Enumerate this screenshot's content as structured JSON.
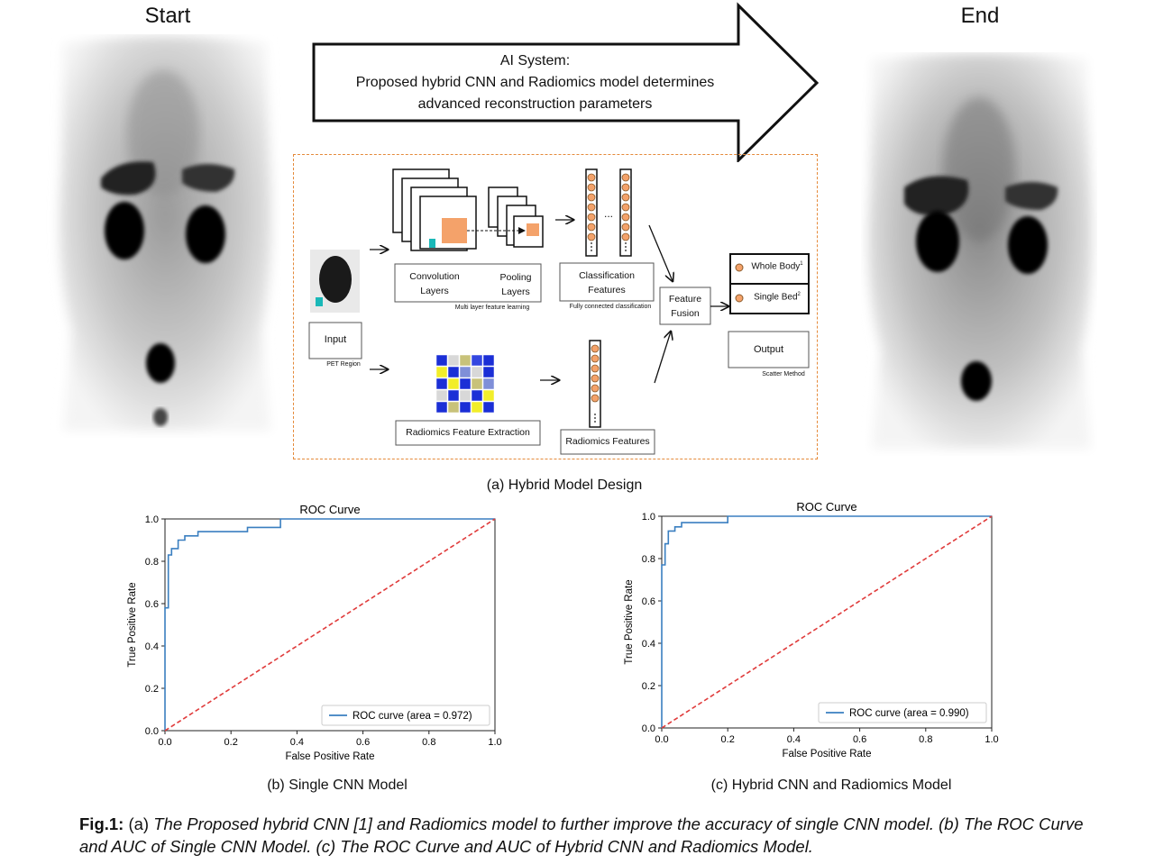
{
  "start_label": "Start",
  "end_label": "End",
  "ai_system": {
    "line1": "AI System:",
    "line2": "Proposed  hybrid  CNN and Radiomics model determines",
    "line3": "advanced reconstruction  parameters"
  },
  "diagram": {
    "input_label": "Input",
    "pet_region": "PET Region",
    "conv_label1": "Convolution",
    "conv_label2": "Layers",
    "pool_label1": "Pooling",
    "pool_label2": "Layers",
    "multi_layer": "Multi layer feature learning",
    "class_label1": "Classification",
    "class_label2": "Features",
    "fully_connected": "Fully connected classification",
    "dots": "...",
    "fusion_label1": "Feature",
    "fusion_label2": "Fusion",
    "whole_body": "Whole Body",
    "single_bed": "Single Bed",
    "sup1": "1",
    "sup2": "2",
    "output_label": "Output",
    "scatter_method": "Scatter Method",
    "radiomics_extraction": "Radiomics Feature Extraction",
    "radiomics_features": "Radiomics Features",
    "grid_colors": [
      [
        "#1b2fd6",
        "#d8d8d8",
        "#c8c27a",
        "#3447e0",
        "#1b2fd6"
      ],
      [
        "#f2ee2a",
        "#1b2fd6",
        "#7f8fd8",
        "#d8d8d8",
        "#1b2fd6"
      ],
      [
        "#1b2fd6",
        "#f2ee2a",
        "#1b2fd6",
        "#c8c27a",
        "#7f8fd8"
      ],
      [
        "#d8d8d8",
        "#1b2fd6",
        "#d8d8d8",
        "#1b2fd6",
        "#f2ee2a"
      ],
      [
        "#1b2fd6",
        "#c8c27a",
        "#1b2fd6",
        "#f2ee2a",
        "#1b2fd6"
      ]
    ]
  },
  "caption_a": "(a) Hybrid Model Design",
  "caption_b": "(b) Single CNN Model",
  "caption_c": "(c) Hybrid CNN and Radiomics Model",
  "fig_caption": {
    "prefix": "Fig.1:",
    "a_tag": " (a) ",
    "a_text": "The Proposed hybrid CNN [1] and Radiomics model to further improve the accuracy of single CNN model. (b) The ROC Curve and AUC of Single CNN Model. (c) The ROC Curve and AUC of Hybrid CNN and Radiomics Model."
  },
  "chart_data": [
    {
      "type": "line",
      "title": "ROC Curve",
      "xlabel": "False Positive Rate",
      "ylabel": "True Positive Rate",
      "xlim": [
        0,
        1
      ],
      "ylim": [
        0,
        1
      ],
      "xticks": [
        "0.0",
        "0.2",
        "0.4",
        "0.6",
        "0.8",
        "1.0"
      ],
      "yticks": [
        "0.0",
        "0.2",
        "0.4",
        "0.6",
        "0.8",
        "1.0"
      ],
      "legend": "bottom-right",
      "series": [
        {
          "name": "ROC curve (area = 0.972)",
          "color": "#3a7fc0",
          "x": [
            0,
            0,
            0.01,
            0.01,
            0.02,
            0.02,
            0.04,
            0.04,
            0.06,
            0.06,
            0.1,
            0.1,
            0.25,
            0.25,
            0.35,
            0.35,
            1.0
          ],
          "y": [
            0,
            0.58,
            0.58,
            0.83,
            0.83,
            0.86,
            0.86,
            0.9,
            0.9,
            0.92,
            0.92,
            0.94,
            0.94,
            0.96,
            0.96,
            1.0,
            1.0
          ]
        },
        {
          "name": "",
          "color": "#e03b3b",
          "dashed": true,
          "x": [
            0,
            1
          ],
          "y": [
            0,
            1
          ]
        }
      ]
    },
    {
      "type": "line",
      "title": "ROC Curve",
      "xlabel": "False Positive Rate",
      "ylabel": "True Positive Rate",
      "xlim": [
        0,
        1
      ],
      "ylim": [
        0,
        1
      ],
      "xticks": [
        "0.0",
        "0.2",
        "0.4",
        "0.6",
        "0.8",
        "1.0"
      ],
      "yticks": [
        "0.0",
        "0.2",
        "0.4",
        "0.6",
        "0.8",
        "1.0"
      ],
      "legend": "bottom-right",
      "series": [
        {
          "name": "ROC curve (area = 0.990)",
          "color": "#3a7fc0",
          "x": [
            0,
            0,
            0.01,
            0.01,
            0.02,
            0.02,
            0.04,
            0.04,
            0.06,
            0.06,
            0.2,
            0.2,
            1.0
          ],
          "y": [
            0,
            0.77,
            0.77,
            0.87,
            0.87,
            0.93,
            0.93,
            0.95,
            0.95,
            0.97,
            0.97,
            1.0,
            1.0
          ]
        },
        {
          "name": "",
          "color": "#e03b3b",
          "dashed": true,
          "x": [
            0,
            1
          ],
          "y": [
            0,
            1
          ]
        }
      ]
    }
  ]
}
